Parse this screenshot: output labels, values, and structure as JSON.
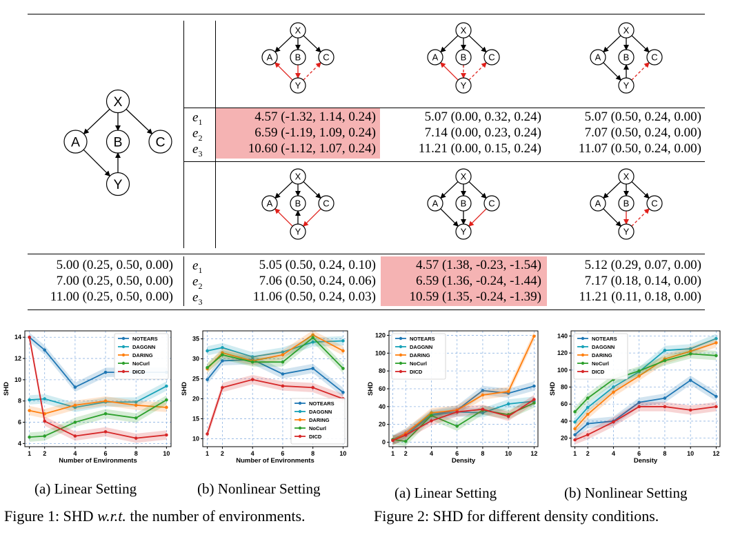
{
  "table": {
    "row1": {
      "e_labels": [
        "e",
        "e",
        "e"
      ],
      "e_subs": [
        "1",
        "2",
        "3"
      ],
      "col1": [
        "4.57 (-1.32, 1.14, 0.24)",
        "6.59 (-1.19, 1.09, 0.24)",
        "10.60 (-1.12, 1.07, 0.24)"
      ],
      "col2": [
        "5.07 (0.00, 0.32, 0.24)",
        "7.14 (0.00, 0.23, 0.24)",
        "11.21 (0.00, 0.15, 0.24)"
      ],
      "col3": [
        "5.07 (0.50, 0.24, 0.00)",
        "7.07 (0.50, 0.24, 0.00)",
        "11.07 (0.50, 0.24, 0.00)"
      ]
    },
    "row2": {
      "left": [
        "5.00 (0.25, 0.50, 0.00)",
        "7.00 (0.25, 0.50, 0.00)",
        "11.00 (0.25, 0.50, 0.00)"
      ],
      "e_labels": [
        "e",
        "e",
        "e"
      ],
      "e_subs": [
        "1",
        "2",
        "3"
      ],
      "col1": [
        "5.05 (0.50, 0.24, 0.10)",
        "7.06 (0.50, 0.24, 0.06)",
        "11.06 (0.50, 0.24, 0.03)"
      ],
      "col2": [
        "4.57 (1.38, -0.23, -1.54)",
        "6.59 (1.36, -0.24, -1.44)",
        "10.59 (1.35, -0.24, -1.39)"
      ],
      "col3": [
        "5.12 (0.29, 0.07, 0.00)",
        "7.17 (0.18, 0.14, 0.00)",
        "11.21 (0.11, 0.18, 0.00)"
      ]
    },
    "node_labels": {
      "x": "X",
      "a": "A",
      "b": "B",
      "c": "C",
      "y": "Y"
    },
    "colors": {
      "highlight": "#f5b3b3",
      "red_edge": "#e0201b"
    }
  },
  "captions": {
    "fig1a": "(a) Linear Setting",
    "fig1b": "(b) Nonlinear Setting",
    "fig2a": "(a) Linear Setting",
    "fig2b": "(b) Nonlinear Setting",
    "fig1_prefix": "Figure 1: SHD ",
    "fig1_italic": "w.r.t.",
    "fig1_suffix": " the number of environments.",
    "fig2": "Figure 2: SHD for different density conditions."
  },
  "chart_data": [
    {
      "type": "line",
      "xlabel": "Number of Environments",
      "ylabel": "SHD",
      "x": [
        1,
        2,
        4,
        6,
        8,
        10
      ],
      "xticks": [
        1,
        2,
        4,
        6,
        8,
        10
      ],
      "ylim": [
        3.7,
        14.6
      ],
      "yticks": [
        4,
        6,
        8,
        10,
        12,
        14
      ],
      "legend": "top-right",
      "grid": true,
      "series": [
        {
          "name": "NOTEARS",
          "color": "#1f77b4",
          "values": [
            14,
            12.8,
            9.3,
            10.7,
            10.7,
            10.7
          ]
        },
        {
          "name": "DAGGNN",
          "color": "#17a2b8",
          "values": [
            8.1,
            8.2,
            7.4,
            7.9,
            7.9,
            9.4
          ]
        },
        {
          "name": "DARING",
          "color": "#ff7f0e",
          "values": [
            7.1,
            6.8,
            7.6,
            8.0,
            7.6,
            7.4
          ]
        },
        {
          "name": "NoCurl",
          "color": "#2ca02c",
          "values": [
            4.6,
            4.7,
            6.0,
            6.8,
            6.4,
            8.1
          ]
        },
        {
          "name": "DICD",
          "color": "#d62728",
          "values": [
            14,
            6.1,
            4.7,
            5.1,
            4.5,
            4.8
          ]
        }
      ]
    },
    {
      "type": "line",
      "xlabel": "Number of Environments",
      "ylabel": "SHD",
      "x": [
        1,
        2,
        4,
        6,
        8,
        10
      ],
      "xticks": [
        1,
        2,
        4,
        6,
        8,
        10
      ],
      "ylim": [
        8,
        37
      ],
      "yticks": [
        10,
        15,
        20,
        25,
        30,
        35
      ],
      "legend": "bottom-right",
      "grid": true,
      "series": [
        {
          "name": "NOTEARS",
          "color": "#1f77b4",
          "values": [
            24.8,
            29.5,
            29.8,
            26.2,
            27.6,
            21.6
          ]
        },
        {
          "name": "DAGGNN",
          "color": "#17a2b8",
          "values": [
            32,
            32.8,
            30.5,
            31.7,
            34.2,
            34.5
          ]
        },
        {
          "name": "DARING",
          "color": "#ff7f0e",
          "values": [
            27.5,
            31.5,
            29.5,
            31.0,
            36.0,
            32.0
          ]
        },
        {
          "name": "NoCurl",
          "color": "#2ca02c",
          "values": [
            27.8,
            31.0,
            29.2,
            29.2,
            35.3,
            27.6
          ]
        },
        {
          "name": "DICD",
          "color": "#d62728",
          "values": [
            11.2,
            22.8,
            24.8,
            23.2,
            22.8,
            20.0
          ]
        }
      ]
    },
    {
      "type": "line",
      "xlabel": "Density",
      "ylabel": "SHD",
      "x": [
        1,
        2,
        4,
        6,
        8,
        10,
        12
      ],
      "xticks": [
        1,
        2,
        4,
        6,
        8,
        10,
        12
      ],
      "ylim": [
        -5,
        125
      ],
      "yticks": [
        0,
        20,
        40,
        60,
        80,
        100,
        120
      ],
      "legend": "top-left",
      "grid": true,
      "series": [
        {
          "name": "NOTEARS",
          "color": "#1f77b4",
          "values": [
            3,
            10,
            31,
            36,
            58,
            55,
            63
          ]
        },
        {
          "name": "DAGGNN",
          "color": "#17a2b8",
          "values": [
            2,
            8,
            30,
            34,
            33,
            43,
            46
          ]
        },
        {
          "name": "DARING",
          "color": "#ff7f0e",
          "values": [
            2,
            10,
            33,
            36,
            53,
            57,
            119
          ]
        },
        {
          "name": "NoCurl",
          "color": "#2ca02c",
          "values": [
            3,
            1,
            30,
            18,
            36,
            31,
            44
          ]
        },
        {
          "name": "DICD",
          "color": "#d62728",
          "values": [
            2,
            8,
            24,
            34,
            37,
            29,
            48
          ]
        }
      ]
    },
    {
      "type": "line",
      "xlabel": "Density",
      "ylabel": "SHD",
      "x": [
        1,
        2,
        4,
        6,
        8,
        10,
        12
      ],
      "xticks": [
        1,
        2,
        4,
        6,
        8,
        10,
        12
      ],
      "ylim": [
        10,
        146
      ],
      "yticks": [
        20,
        40,
        60,
        80,
        100,
        120,
        140
      ],
      "legend": "top-left",
      "grid": true,
      "series": [
        {
          "name": "NOTEARS",
          "color": "#1f77b4",
          "values": [
            24,
            37,
            40,
            62,
            67,
            88,
            69
          ]
        },
        {
          "name": "DAGGNN",
          "color": "#17a2b8",
          "values": [
            39,
            56,
            80,
            98,
            123,
            125,
            137
          ]
        },
        {
          "name": "DARING",
          "color": "#ff7f0e",
          "values": [
            31,
            48,
            74,
            93,
            113,
            122,
            132
          ]
        },
        {
          "name": "NoCurl",
          "color": "#2ca02c",
          "values": [
            51,
            67,
            89,
            99,
            111,
            119,
            117
          ]
        },
        {
          "name": "DICD",
          "color": "#d62728",
          "values": [
            18,
            24,
            39,
            57,
            57,
            53,
            57
          ]
        }
      ]
    }
  ]
}
